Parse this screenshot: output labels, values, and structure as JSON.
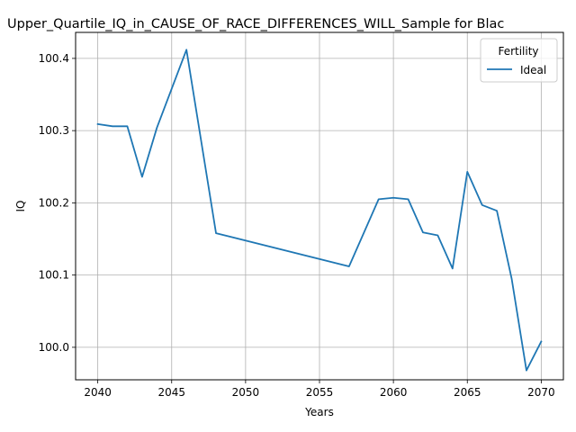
{
  "chart_data": {
    "type": "line",
    "title": "Upper_Quartile_IQ_in_CAUSE_OF_RACE_DIFFERENCES_WILL_Sample for Blac",
    "xlabel": "Years",
    "ylabel": "IQ",
    "xlim": [
      2038.5,
      2071.5
    ],
    "ylim": [
      99.955,
      100.436
    ],
    "x_ticks": [
      2040,
      2045,
      2050,
      2055,
      2060,
      2065,
      2070
    ],
    "y_ticks": [
      100.0,
      100.1,
      100.2,
      100.3,
      100.4
    ],
    "y_tick_labels": [
      "100.0",
      "100.1",
      "100.2",
      "100.3",
      "100.4"
    ],
    "grid": true,
    "legend": {
      "title": "Fertility",
      "placement": "top-right"
    },
    "series": [
      {
        "name": "Ideal",
        "color": "#1f77b4",
        "x": [
          2040,
          2041,
          2042,
          2043,
          2044,
          2046,
          2048,
          2057,
          2059,
          2060,
          2061,
          2062,
          2063,
          2064,
          2065,
          2066,
          2067,
          2068,
          2069,
          2070
        ],
        "y": [
          100.309,
          100.306,
          100.306,
          100.236,
          100.304,
          100.412,
          100.158,
          100.112,
          100.205,
          100.207,
          100.205,
          100.159,
          100.155,
          100.109,
          100.243,
          100.197,
          100.189,
          100.095,
          99.968,
          100.008
        ]
      }
    ]
  }
}
